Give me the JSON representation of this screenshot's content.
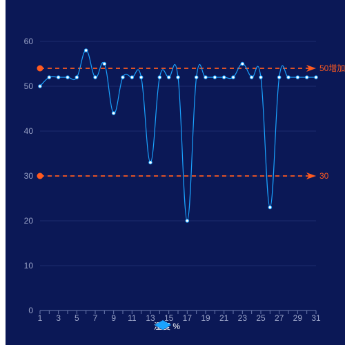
{
  "chart_data": {
    "type": "line",
    "x": [
      1,
      2,
      3,
      4,
      5,
      6,
      7,
      8,
      9,
      10,
      11,
      12,
      13,
      14,
      15,
      16,
      17,
      18,
      19,
      20,
      21,
      22,
      23,
      24,
      25,
      26,
      27,
      28,
      29,
      30,
      31
    ],
    "x_tick_labels": [
      "1",
      "3",
      "5",
      "7",
      "9",
      "11",
      "13",
      "15",
      "17",
      "19",
      "21",
      "23",
      "25",
      "27",
      "29",
      "31"
    ],
    "series": [
      {
        "name": "湿度 %",
        "values": [
          50,
          52,
          52,
          52,
          52,
          58,
          52,
          55,
          44,
          52,
          52,
          52,
          33,
          52,
          52,
          52,
          20,
          52,
          52,
          52,
          52,
          52,
          55,
          52,
          52,
          23,
          52,
          52,
          52,
          52,
          52
        ],
        "color": "#1aa3ff",
        "smooth": true
      }
    ],
    "y_ticks": [
      "0",
      "10",
      "20",
      "30",
      "40",
      "50",
      "60"
    ],
    "ylim": [
      0,
      60
    ],
    "grid": true,
    "mark_lines": [
      {
        "value": 54,
        "label": "50增加",
        "color": "#ff5a1f"
      },
      {
        "value": 30,
        "label": "30",
        "color": "#ff5a1f"
      }
    ],
    "legend_position": "bottom-center",
    "background": "#0b1856"
  }
}
